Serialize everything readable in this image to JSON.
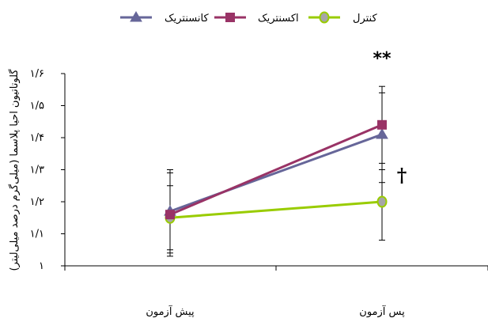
{
  "chart_data": {
    "type": "line",
    "title": "",
    "xlabel": "",
    "ylabel": "گلوتاتیون احیا پلاسما (میلی‌گرم درصد میلی‌لیتر)",
    "ylim": [
      1.0,
      1.6
    ],
    "yticks": [
      1.0,
      1.1,
      1.2,
      1.3,
      1.4,
      1.5,
      1.6
    ],
    "ytick_labels": [
      "۱",
      "۱/۱",
      "۱/۲",
      "۱/۳",
      "۱/۴",
      "۱/۵",
      "۱/۶"
    ],
    "categories": [
      "پیش آزمون",
      "پس آزمون"
    ],
    "grid": false,
    "legend_position": "top",
    "series": [
      {
        "name": "کانسنتریک",
        "color": "#666699",
        "marker": "triangle",
        "values": [
          1.17,
          1.41
        ],
        "error_low": [
          1.04,
          1.26
        ],
        "error_high": [
          1.3,
          1.54
        ]
      },
      {
        "name": "اکسنتریک",
        "color": "#993366",
        "marker": "square",
        "values": [
          1.16,
          1.44
        ],
        "error_low": [
          1.03,
          1.3
        ],
        "error_high": [
          1.29,
          1.56
        ]
      },
      {
        "name": "کنترل",
        "color": "#99cc00",
        "marker": "circle",
        "marker_fill": "#a6a6a6",
        "values": [
          1.15,
          1.2
        ],
        "error_low": [
          1.05,
          1.08
        ],
        "error_high": [
          1.25,
          1.32
        ]
      }
    ],
    "annotations": [
      "**",
      "†"
    ]
  }
}
